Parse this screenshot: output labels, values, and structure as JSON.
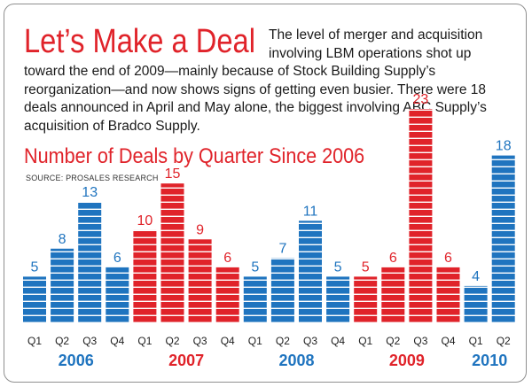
{
  "headline": "Let’s Make a Deal",
  "intro": "The level of merger and acquisition involving LBM operations shot up toward the end of 2009—mainly because of Stock Building Supply’s reorganization—and now shows signs of getting even busier. There were 18 deals announced in April and May alone, the biggest involving ABC Supply’s acquisition of Bradco Supply.",
  "colors": {
    "blue": "#1f74bf",
    "red": "#e0232a"
  },
  "chart_data": {
    "type": "bar",
    "title": "Number of Deals by Quarter Since 2006",
    "source": "SOURCE: PROSALES RESEARCH",
    "ylim": [
      0,
      23
    ],
    "groups": [
      {
        "year": "2006",
        "color": "blue",
        "quarters": [
          "Q1",
          "Q2",
          "Q3",
          "Q4"
        ],
        "values": [
          5,
          8,
          13,
          6
        ]
      },
      {
        "year": "2007",
        "color": "red",
        "quarters": [
          "Q1",
          "Q2",
          "Q3",
          "Q4"
        ],
        "values": [
          10,
          15,
          9,
          6
        ]
      },
      {
        "year": "2008",
        "color": "blue",
        "quarters": [
          "Q1",
          "Q2",
          "Q3",
          "Q4"
        ],
        "values": [
          5,
          7,
          11,
          5
        ]
      },
      {
        "year": "2009",
        "color": "red",
        "quarters": [
          "Q1",
          "Q2",
          "Q3",
          "Q4"
        ],
        "values": [
          5,
          6,
          23,
          6
        ]
      },
      {
        "year": "2010",
        "color": "blue",
        "quarters": [
          "Q1",
          "Q2"
        ],
        "values": [
          4,
          18
        ]
      }
    ]
  }
}
